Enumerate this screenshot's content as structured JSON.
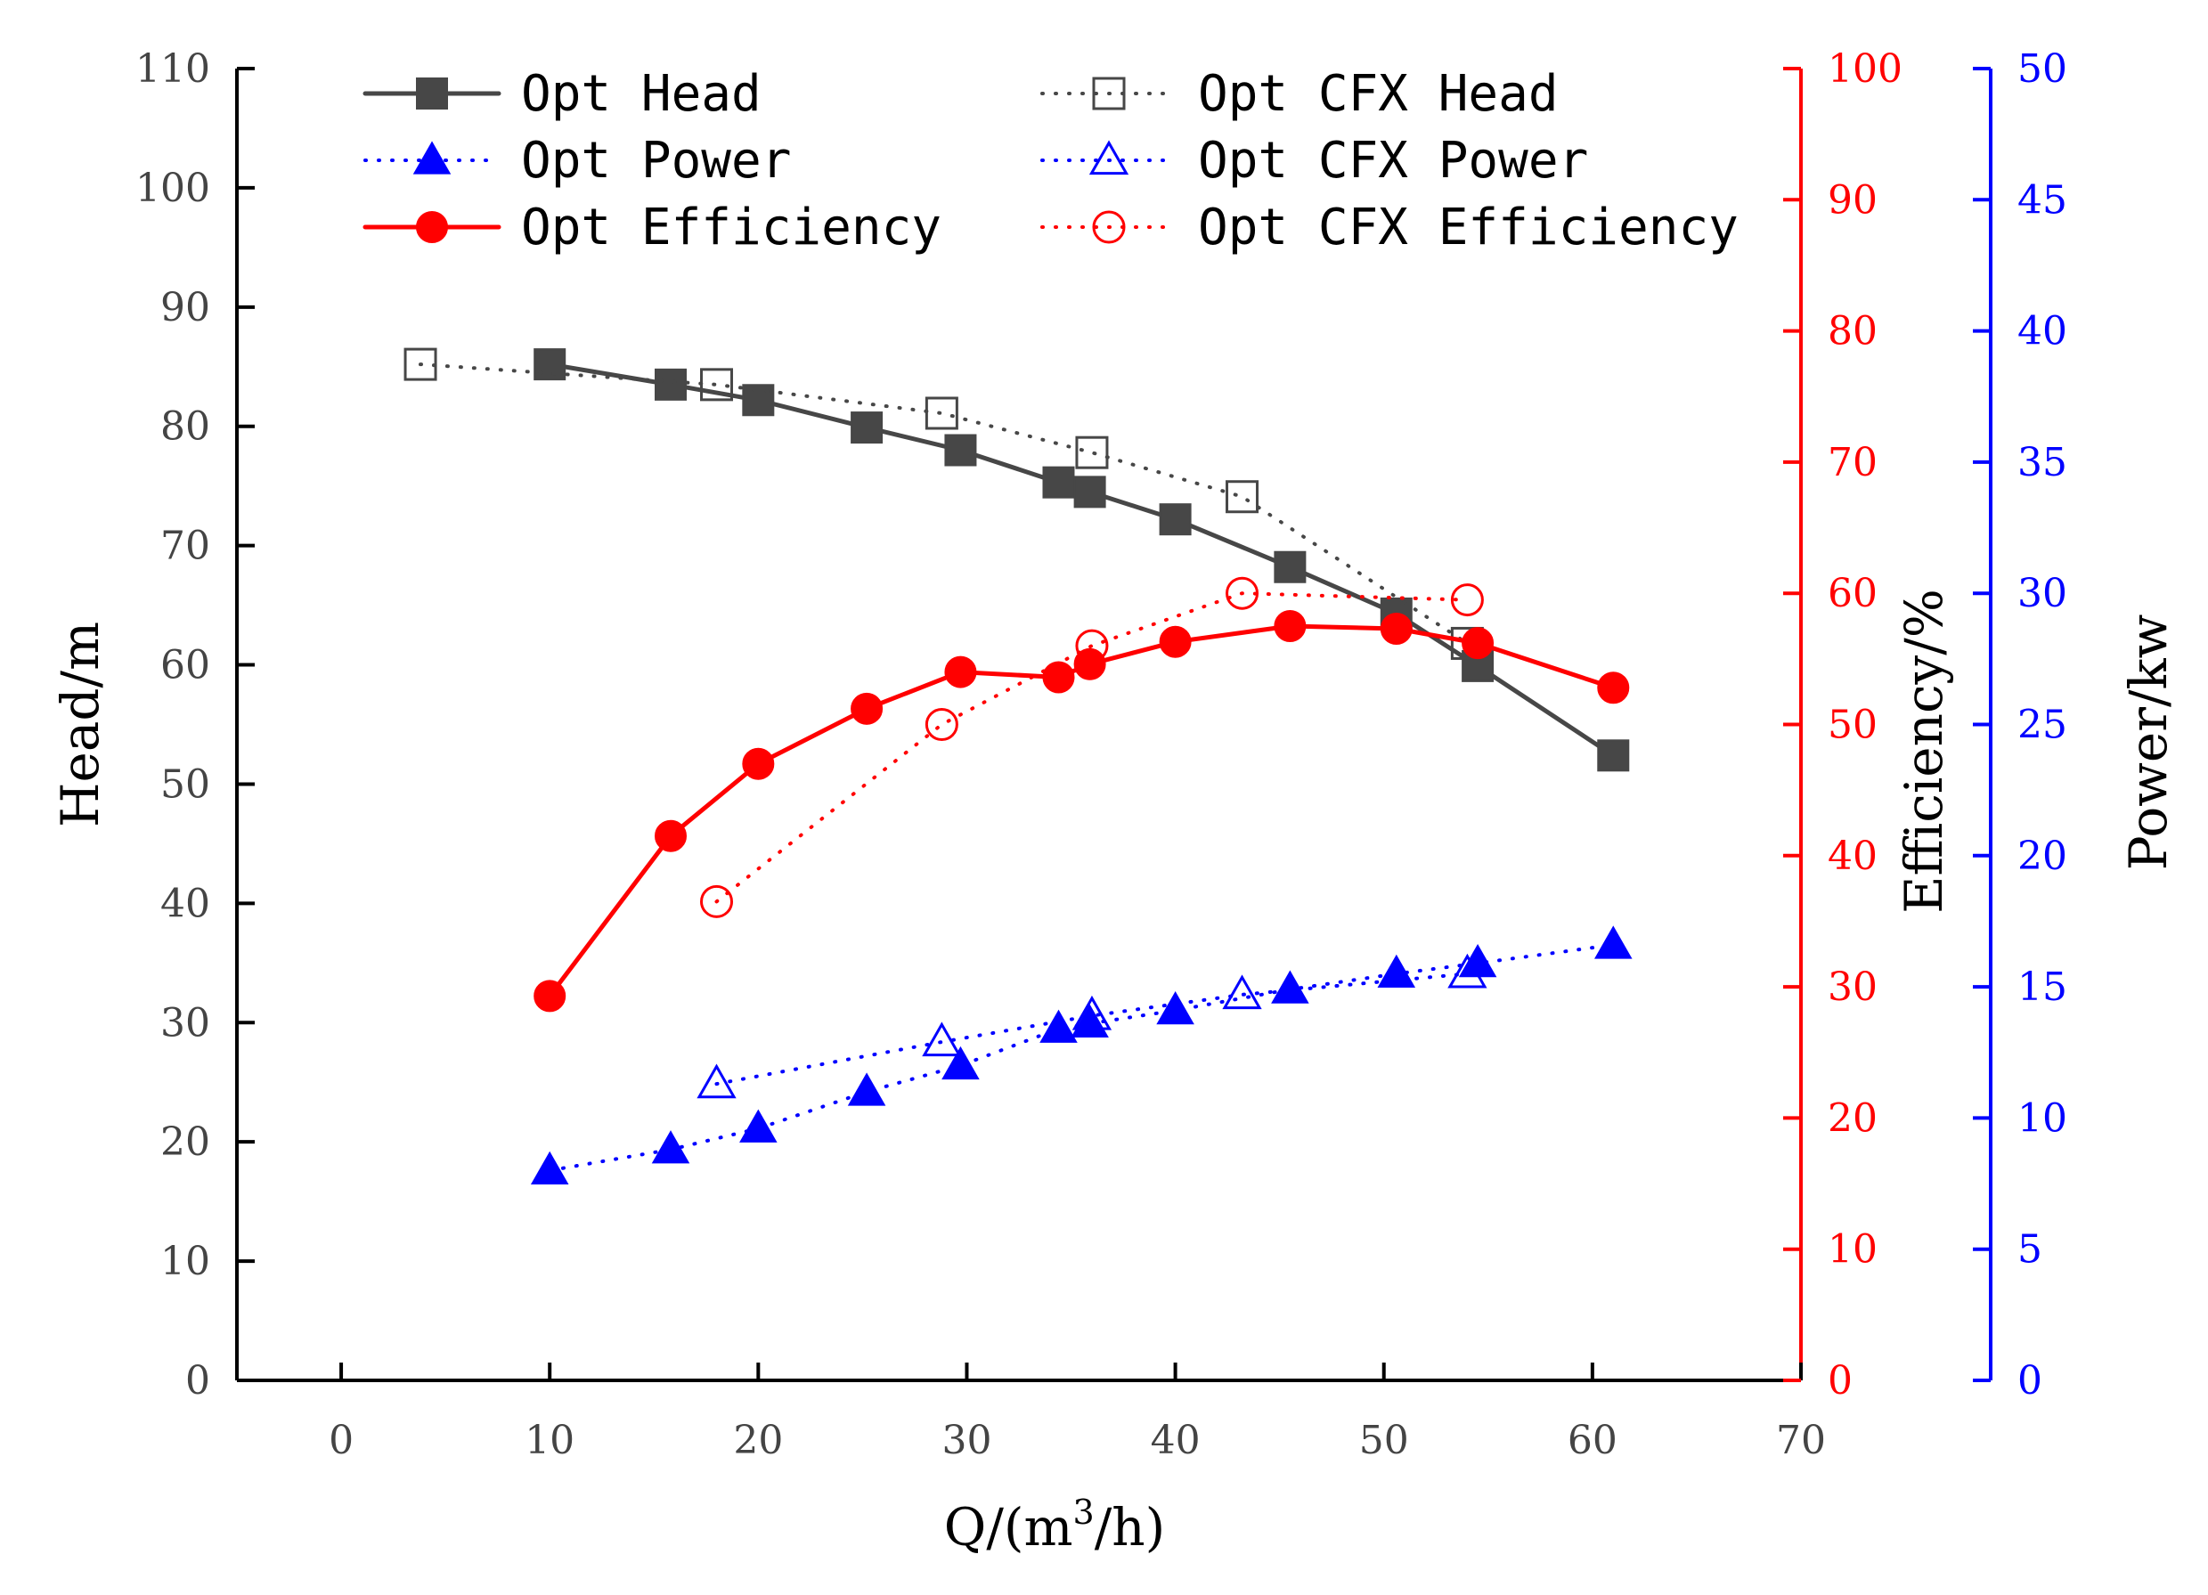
{
  "chart_data": {
    "type": "line",
    "title": "",
    "xlabel_prefix": "Q/(m",
    "xlabel_sup": "3",
    "xlabel_suffix": "/h)",
    "xlim": [
      -5,
      70
    ],
    "xticks": [
      0,
      10,
      20,
      30,
      40,
      50,
      60,
      70
    ],
    "axes": {
      "head": {
        "label": "Head/m",
        "lim": [
          0,
          110
        ],
        "ticks": [
          0,
          10,
          20,
          30,
          40,
          50,
          60,
          70,
          80,
          90,
          100,
          110
        ],
        "color": "#4a4a4a",
        "position": "left"
      },
      "efficiency": {
        "label": "Efficiency/%",
        "lim": [
          0,
          100
        ],
        "ticks": [
          0,
          10,
          20,
          30,
          40,
          50,
          60,
          70,
          80,
          90,
          100
        ],
        "color": "#ff0000",
        "position": "right"
      },
      "power": {
        "label": "Power/kw",
        "lim": [
          0,
          50
        ],
        "ticks": [
          0,
          5,
          10,
          15,
          20,
          25,
          30,
          35,
          40,
          45,
          50
        ],
        "color": "#0000ff",
        "position": "far-right"
      }
    },
    "legend_position": "top",
    "series": [
      {
        "name": "Opt Head",
        "axis": "head",
        "color": "#474747",
        "marker": "square",
        "filled": true,
        "line": "solid",
        "x": [
          10,
          15.8,
          20,
          25.2,
          29.7,
          34.4,
          35.9,
          40,
          45.5,
          50.6,
          54.5,
          61
        ],
        "y": [
          85.2,
          83.5,
          82.2,
          79.9,
          78,
          75.3,
          74.5,
          72.2,
          68.2,
          64.3,
          59.9,
          52.4
        ]
      },
      {
        "name": "Opt CFX Head",
        "axis": "head",
        "color": "#474747",
        "marker": "square",
        "filled": false,
        "line": "dotted",
        "x": [
          3.8,
          18,
          28.8,
          36,
          43.2,
          54
        ],
        "y": [
          85.2,
          83.5,
          81.1,
          77.8,
          74.1,
          61.8
        ]
      },
      {
        "name": "Opt Power",
        "axis": "power",
        "color": "#0000ff",
        "marker": "triangle",
        "filled": true,
        "line": "dotted",
        "x": [
          10,
          15.8,
          20,
          25.2,
          29.7,
          34.4,
          35.9,
          40,
          45.5,
          50.6,
          54.5,
          61
        ],
        "y": [
          8,
          8.8,
          9.6,
          11,
          12,
          13.4,
          13.6,
          14.1,
          14.9,
          15.5,
          15.9,
          16.6
        ]
      },
      {
        "name": "Opt CFX Power",
        "axis": "power",
        "color": "#0000ff",
        "marker": "triangle",
        "filled": false,
        "line": "dotted",
        "x": [
          18,
          28.8,
          36,
          43.2,
          54
        ],
        "y": [
          11.3,
          12.9,
          13.9,
          14.7,
          15.5
        ]
      },
      {
        "name": "Opt Efficiency",
        "axis": "efficiency",
        "color": "#ff0000",
        "marker": "circle",
        "filled": true,
        "line": "solid",
        "x": [
          10,
          15.8,
          20,
          25.2,
          29.7,
          34.4,
          35.9,
          40,
          45.5,
          50.6,
          54.5,
          61
        ],
        "y": [
          29.3,
          41.5,
          47,
          51.2,
          54,
          53.6,
          54.6,
          56.3,
          57.5,
          57.3,
          56.2,
          52.8
        ]
      },
      {
        "name": "Opt CFX Efficiency",
        "axis": "efficiency",
        "color": "#ff0000",
        "marker": "circle",
        "filled": false,
        "line": "dotted",
        "x": [
          18,
          28.8,
          36,
          43.2,
          54
        ],
        "y": [
          36.5,
          50,
          56,
          60,
          59.5
        ]
      }
    ],
    "legend_entries": [
      "Opt Head",
      "Opt Power",
      "Opt Efficiency",
      "Opt CFX Head",
      "Opt CFX Power",
      "Opt CFX Efficiency"
    ]
  }
}
